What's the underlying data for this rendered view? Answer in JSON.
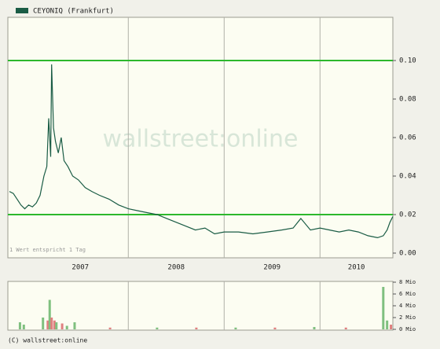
{
  "chart_data": [
    {
      "type": "line",
      "series": [
        {
          "name": "CEYONIQ (Frankfurt)",
          "color": "#1a5c45",
          "x": [
            2006.76,
            2006.8,
            2006.84,
            2006.88,
            2006.92,
            2006.96,
            2007.0,
            2007.04,
            2007.08,
            2007.12,
            2007.15,
            2007.17,
            2007.19,
            2007.2,
            2007.22,
            2007.24,
            2007.27,
            2007.3,
            2007.33,
            2007.37,
            2007.42,
            2007.48,
            2007.55,
            2007.62,
            2007.7,
            2007.8,
            2007.9,
            2008.0,
            2008.1,
            2008.2,
            2008.3,
            2008.4,
            2008.5,
            2008.6,
            2008.7,
            2008.8,
            2008.9,
            2009.0,
            2009.15,
            2009.3,
            2009.45,
            2009.6,
            2009.72,
            2009.8,
            2009.9,
            2010.0,
            2010.1,
            2010.2,
            2010.3,
            2010.4,
            2010.5,
            2010.6,
            2010.66,
            2010.7,
            2010.73,
            2010.76
          ],
          "values": [
            0.032,
            0.031,
            0.028,
            0.025,
            0.023,
            0.025,
            0.024,
            0.026,
            0.03,
            0.04,
            0.045,
            0.07,
            0.05,
            0.098,
            0.065,
            0.058,
            0.052,
            0.06,
            0.048,
            0.045,
            0.04,
            0.038,
            0.034,
            0.032,
            0.03,
            0.028,
            0.025,
            0.023,
            0.022,
            0.021,
            0.02,
            0.018,
            0.016,
            0.014,
            0.012,
            0.013,
            0.01,
            0.011,
            0.011,
            0.01,
            0.011,
            0.012,
            0.013,
            0.018,
            0.012,
            0.013,
            0.012,
            0.011,
            0.012,
            0.011,
            0.009,
            0.008,
            0.009,
            0.012,
            0.016,
            0.019
          ]
        }
      ],
      "xlim": [
        2006.76,
        2010.76
      ],
      "xticks": [
        2008,
        2009,
        2010
      ],
      "categories": [
        "2007",
        "2008",
        "2009",
        "2010"
      ],
      "ylim": [
        0,
        0.12
      ],
      "yticks": [
        {
          "value": 0,
          "label": "0.00"
        },
        0.02,
        0.04,
        0.06,
        0.08,
        {
          "value": 0.1,
          "label": "0.10"
        }
      ],
      "reference_lines": {
        "values": [
          0.1,
          0.02
        ],
        "color": "#2db82d"
      },
      "note": "1 Wert entspricht 1 Tag",
      "watermark": "wallstreet:online"
    },
    {
      "type": "bar",
      "x": [
        2006.87,
        2006.91,
        2007.11,
        2007.16,
        2007.18,
        2007.2,
        2007.23,
        2007.25,
        2007.31,
        2007.36,
        2007.44,
        2007.81,
        2008.3,
        2008.71,
        2009.12,
        2009.53,
        2009.94,
        2010.27,
        2010.66,
        2010.7,
        2010.74
      ],
      "values": [
        1.2,
        0.8,
        2.0,
        1.5,
        5.0,
        2.0,
        1.5,
        1.2,
        1.0,
        0.6,
        1.2,
        0.3,
        0.3,
        0.3,
        0.3,
        0.3,
        0.4,
        0.3,
        7.2,
        1.5,
        0.8
      ],
      "colors": [
        "#7fc07f",
        "#7fc07f",
        "#7fc07f",
        "#e08080",
        "#7fc07f",
        "#e08080",
        "#e08080",
        "#7fc07f",
        "#e08080",
        "#7fc07f",
        "#7fc07f",
        "#e08080",
        "#7fc07f",
        "#e08080",
        "#7fc07f",
        "#e08080",
        "#7fc07f",
        "#e08080",
        "#7fc07f",
        "#7fc07f",
        "#e08080"
      ],
      "xlim": [
        2006.76,
        2010.76
      ],
      "xticks": [
        2008,
        2009,
        2010
      ],
      "ylim": [
        0,
        8
      ],
      "yticks": [
        {
          "value": 0,
          "label": "0 Mio"
        },
        {
          "value": 2,
          "label": "2 Mio"
        },
        {
          "value": 4,
          "label": "4 Mio"
        },
        {
          "value": 6,
          "label": "6 Mio"
        },
        {
          "value": 8,
          "label": "8 Mio"
        }
      ]
    }
  ],
  "footer": "(C) wallstreet:online"
}
